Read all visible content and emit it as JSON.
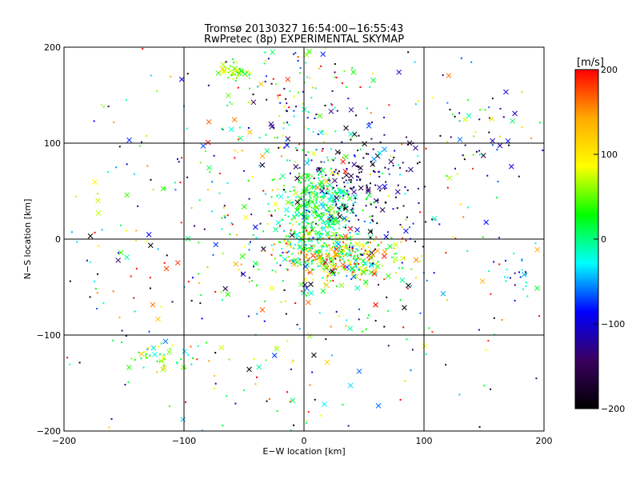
{
  "chart_data": {
    "type": "scatter",
    "title": "Tromsø 20130327 16:54:00−16:55:43",
    "subtitle": "RwPretec (8p) EXPERIMENTAL SKYMAP",
    "xlabel": "E−W location [km]",
    "ylabel": "N−S location [km]",
    "xlim": [
      -200,
      200
    ],
    "ylim": [
      -200,
      200
    ],
    "x_ticks": [
      -200,
      -100,
      0,
      100,
      200
    ],
    "y_ticks": [
      -200,
      -100,
      0,
      100,
      200
    ],
    "x_tick_labels": [
      "−200",
      "−100",
      "0",
      "100",
      "200"
    ],
    "y_tick_labels": [
      "−200",
      "−100",
      "0",
      "100",
      "200"
    ],
    "grid": true,
    "colorbar": {
      "label": "[m/s]",
      "range": [
        -200,
        200
      ],
      "ticks": [
        200,
        100,
        0,
        -100,
        -200
      ],
      "tick_labels": [
        "200",
        "100",
        "0",
        "−100",
        "−200"
      ],
      "stops": [
        "#ff0000",
        "#ffaa00",
        "#ffff00",
        "#00ff00",
        "#00ffff",
        "#0000ff",
        "#3a0060",
        "#000000"
      ]
    },
    "markers": {
      "dot": "echo",
      "cross": "echo"
    },
    "series": [
      {
        "clusters": [
          {
            "x": 10,
            "y": 25,
            "sx": 16,
            "sy": 25,
            "n": 420,
            "v": 10,
            "vs": 35
          },
          {
            "x": 30,
            "y": -20,
            "sx": 25,
            "sy": 12,
            "n": 320,
            "v": 80,
            "vs": 90
          },
          {
            "x": 45,
            "y": 60,
            "sx": 22,
            "sy": 25,
            "n": 160,
            "v": -160,
            "vs": 45
          },
          {
            "x": -55,
            "y": 175,
            "sx": 7,
            "sy": 5,
            "n": 45,
            "v": 60,
            "vs": 30
          },
          {
            "x": -5,
            "y": 140,
            "sx": 30,
            "sy": 35,
            "n": 130,
            "v": 0,
            "vs": 110
          },
          {
            "x": -120,
            "y": -125,
            "sx": 12,
            "sy": 8,
            "n": 45,
            "v": 30,
            "vs": 50
          },
          {
            "x": 150,
            "y": 120,
            "sx": 25,
            "sy": 20,
            "n": 40,
            "v": -100,
            "vs": 120
          },
          {
            "x": 175,
            "y": -35,
            "sx": 15,
            "sy": 10,
            "n": 25,
            "v": -60,
            "vs": 40
          },
          {
            "x": 0,
            "y": 0,
            "sx": 120,
            "sy": 120,
            "n": 650,
            "v": 0,
            "vs": 130
          }
        ]
      }
    ]
  }
}
